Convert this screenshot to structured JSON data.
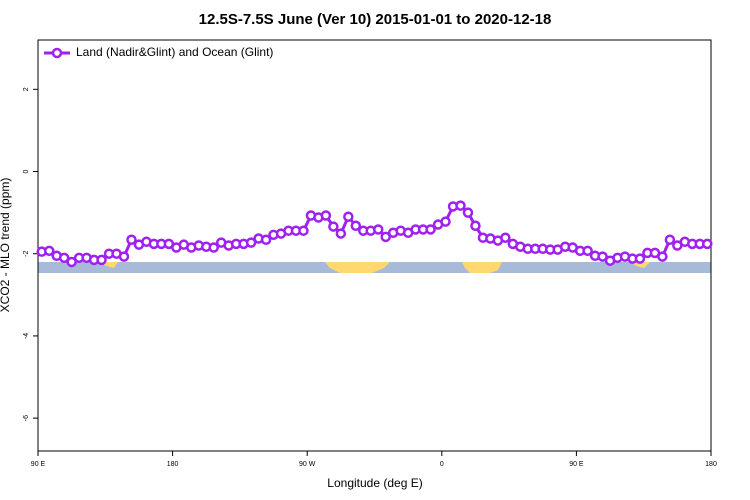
{
  "chart_data": {
    "type": "line",
    "title": "12.5S-7.5S June (Ver 10)   2015-01-01 to 2020-12-18",
    "xlabel": "Longitude (deg E)",
    "ylabel": "XCO2 - MLO trend (ppm)",
    "xlim": [
      90,
      540
    ],
    "ylim": [
      -6.8,
      3.2
    ],
    "xticks": [
      {
        "value": 90,
        "label": "90 E"
      },
      180,
      {
        "value": 270,
        "label": "90 W"
      },
      {
        "value": 360,
        "label": "0"
      },
      {
        "value": 450,
        "label": "90 E"
      },
      {
        "value": 540,
        "label": "180"
      }
    ],
    "yticks": [
      -6,
      -4,
      -2,
      0,
      2
    ],
    "legend": "top-left",
    "x": [
      92.5,
      97.5,
      102.5,
      107.5,
      112.5,
      117.5,
      122.5,
      127.5,
      132.5,
      137.5,
      142.5,
      147.5,
      152.5,
      157.5,
      162.5,
      167.5,
      172.5,
      177.5,
      182.5,
      187.5,
      192.5,
      197.5,
      202.5,
      207.5,
      212.5,
      217.5,
      222.5,
      227.5,
      232.5,
      237.5,
      242.5,
      247.5,
      252.5,
      257.5,
      262.5,
      267.5,
      272.5,
      277.5,
      282.5,
      287.5,
      292.5,
      297.5,
      302.5,
      307.5,
      312.5,
      317.5,
      322.5,
      327.5,
      332.5,
      337.5,
      342.5,
      347.5,
      352.5,
      357.5,
      362.5,
      367.5,
      372.5,
      377.5,
      382.5,
      387.5,
      392.5,
      397.5,
      402.5,
      407.5,
      412.5,
      417.5,
      422.5,
      427.5,
      432.5,
      437.5,
      442.5,
      447.5,
      452.5,
      457.5,
      462.5,
      467.5,
      472.5,
      477.5,
      482.5,
      487.5,
      492.5,
      497.5,
      502.5,
      507.5,
      512.5,
      517.5,
      522.5,
      527.5,
      532.5,
      537.5
    ],
    "series": [
      {
        "name": "Land (Nadir&Glint) and Ocean (Glint)",
        "color": "#a020f0",
        "values": [
          -1.95,
          -1.93,
          -2.05,
          -2.1,
          -2.2,
          -2.1,
          -2.1,
          -2.15,
          -2.15,
          -2.0,
          -2.0,
          -2.07,
          -1.66,
          -1.78,
          -1.71,
          -1.76,
          -1.76,
          -1.76,
          -1.85,
          -1.78,
          -1.85,
          -1.8,
          -1.83,
          -1.85,
          -1.73,
          -1.8,
          -1.76,
          -1.76,
          -1.73,
          -1.63,
          -1.66,
          -1.54,
          -1.51,
          -1.44,
          -1.44,
          -1.44,
          -1.07,
          -1.12,
          -1.07,
          -1.34,
          -1.51,
          -1.1,
          -1.32,
          -1.44,
          -1.44,
          -1.41,
          -1.59,
          -1.49,
          -1.44,
          -1.49,
          -1.41,
          -1.41,
          -1.41,
          -1.29,
          -1.22,
          -0.85,
          -0.83,
          -1.0,
          -1.32,
          -1.61,
          -1.63,
          -1.68,
          -1.61,
          -1.76,
          -1.83,
          -1.88,
          -1.88,
          -1.88,
          -1.9,
          -1.9,
          -1.83,
          -1.85,
          -1.93,
          -1.93,
          -2.05,
          -2.07,
          -2.17,
          -2.1,
          -2.07,
          -2.12,
          -2.12,
          -1.98,
          -1.98,
          -2.07,
          -1.66,
          -1.8,
          -1.71,
          -1.76,
          -1.76,
          -1.76
        ]
      }
    ]
  }
}
